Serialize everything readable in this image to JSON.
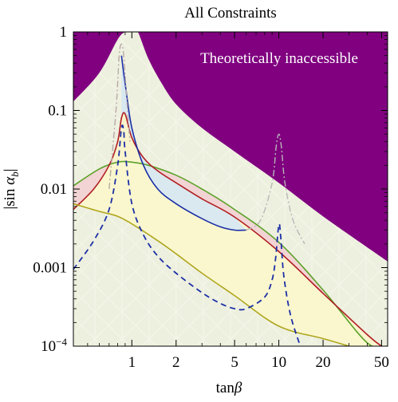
{
  "chart_data": {
    "type": "line",
    "title": "All Constraints",
    "xlabel": "tanβ",
    "ylabel": "|sin α_b|",
    "x_scale": "log",
    "y_scale": "log",
    "xlim": [
      0.4,
      55
    ],
    "ylim": [
      0.0001,
      1
    ],
    "x_ticks": [
      1,
      2,
      5,
      10,
      20,
      50
    ],
    "x_tick_labels": [
      "1",
      "2",
      "5",
      "10",
      "20",
      "50"
    ],
    "y_ticks": [
      0.0001,
      0.001,
      0.01,
      0.1,
      1
    ],
    "y_tick_labels": [
      "10^-4",
      "0.001",
      "0.01",
      "0.1",
      "1"
    ],
    "colors": {
      "inaccessible": "#800080",
      "allowed_fill": "#eef0df",
      "green": "#5ca32a",
      "red": "#b01e22",
      "blue": "#1c2fa6",
      "olive": "#b0a61e",
      "pink_fill": "#f2cfd2",
      "blue_fill": "#d4e6f4",
      "yellow_fill": "#fbf7cc"
    },
    "regions": {
      "inaccessible_label": "Theoretically inaccessible"
    },
    "series": [
      {
        "key": "inaccessible_boundary",
        "style": "solid",
        "x": [
          0.4,
          0.6,
          0.8,
          0.9,
          0.95,
          1.05,
          1.1,
          1.3,
          1.6,
          2,
          3,
          5,
          10,
          20,
          55
        ],
        "y": [
          0.13,
          0.3,
          0.8,
          1.0,
          1.0,
          1.0,
          1.0,
          0.45,
          0.22,
          0.12,
          0.06,
          0.03,
          0.012,
          0.0045,
          0.0012
        ]
      },
      {
        "key": "green",
        "style": "solid",
        "x": [
          0.4,
          0.6,
          0.8,
          1.0,
          1.3,
          2,
          3,
          5,
          10,
          20,
          40,
          55
        ],
        "y": [
          0.011,
          0.018,
          0.022,
          0.022,
          0.02,
          0.015,
          0.01,
          0.0055,
          0.0021,
          0.00052,
          0.00011,
          0.0001
        ]
      },
      {
        "key": "red",
        "style": "solid",
        "x": [
          0.4,
          0.55,
          0.7,
          0.8,
          0.85,
          0.9,
          1.0,
          1.2,
          1.5,
          2,
          3,
          5,
          10,
          20,
          40,
          50
        ],
        "y": [
          0.0055,
          0.01,
          0.02,
          0.04,
          0.08,
          0.09,
          0.045,
          0.025,
          0.017,
          0.012,
          0.0075,
          0.0044,
          0.0016,
          0.00047,
          0.00014,
          0.0001
        ]
      },
      {
        "key": "blue_solid",
        "style": "solid",
        "x": [
          0.85,
          0.9,
          1.0,
          1.2,
          1.5,
          2,
          3,
          4,
          5,
          6
        ],
        "y": [
          0.5,
          0.22,
          0.06,
          0.02,
          0.01,
          0.0065,
          0.0042,
          0.0033,
          0.003,
          0.003
        ]
      },
      {
        "key": "olive",
        "style": "solid",
        "x": [
          0.4,
          0.6,
          0.8,
          1.0,
          1.5,
          2,
          3,
          5,
          10,
          20,
          30
        ],
        "y": [
          0.0065,
          0.0052,
          0.0045,
          0.0036,
          0.0022,
          0.0015,
          0.00085,
          0.00044,
          0.00018,
          0.000125,
          0.0001
        ]
      },
      {
        "key": "blue_dashed",
        "style": "dashed",
        "x": [
          0.4,
          0.55,
          0.7,
          0.8,
          0.85,
          0.88,
          0.9,
          1.0,
          1.2,
          1.5,
          2,
          3,
          4,
          5,
          6,
          8,
          9,
          9.5,
          10,
          10.3,
          10.8,
          12,
          14
        ],
        "y": [
          0.00095,
          0.0022,
          0.0055,
          0.02,
          0.06,
          0.055,
          0.03,
          0.0065,
          0.0026,
          0.0014,
          0.00085,
          0.00048,
          0.00035,
          0.0003,
          0.0003,
          0.00042,
          0.0007,
          0.0013,
          0.0035,
          0.0025,
          0.0008,
          0.00025,
          0.0001
        ]
      },
      {
        "key": "gray_dashdot",
        "style": "dashdot",
        "x": [
          0.7,
          0.78,
          0.82,
          0.85,
          0.88,
          0.92,
          0.97
        ],
        "y": [
          0.01,
          0.1,
          0.5,
          0.7,
          0.5,
          0.15,
          0.04
        ]
      },
      {
        "key": "gray_dashdot_2",
        "style": "dashdot",
        "x": [
          6,
          7.5,
          9,
          9.6,
          10,
          10.4,
          11,
          12.5,
          15
        ],
        "y": [
          0.003,
          0.004,
          0.012,
          0.035,
          0.05,
          0.035,
          0.012,
          0.004,
          0.002
        ]
      }
    ]
  }
}
